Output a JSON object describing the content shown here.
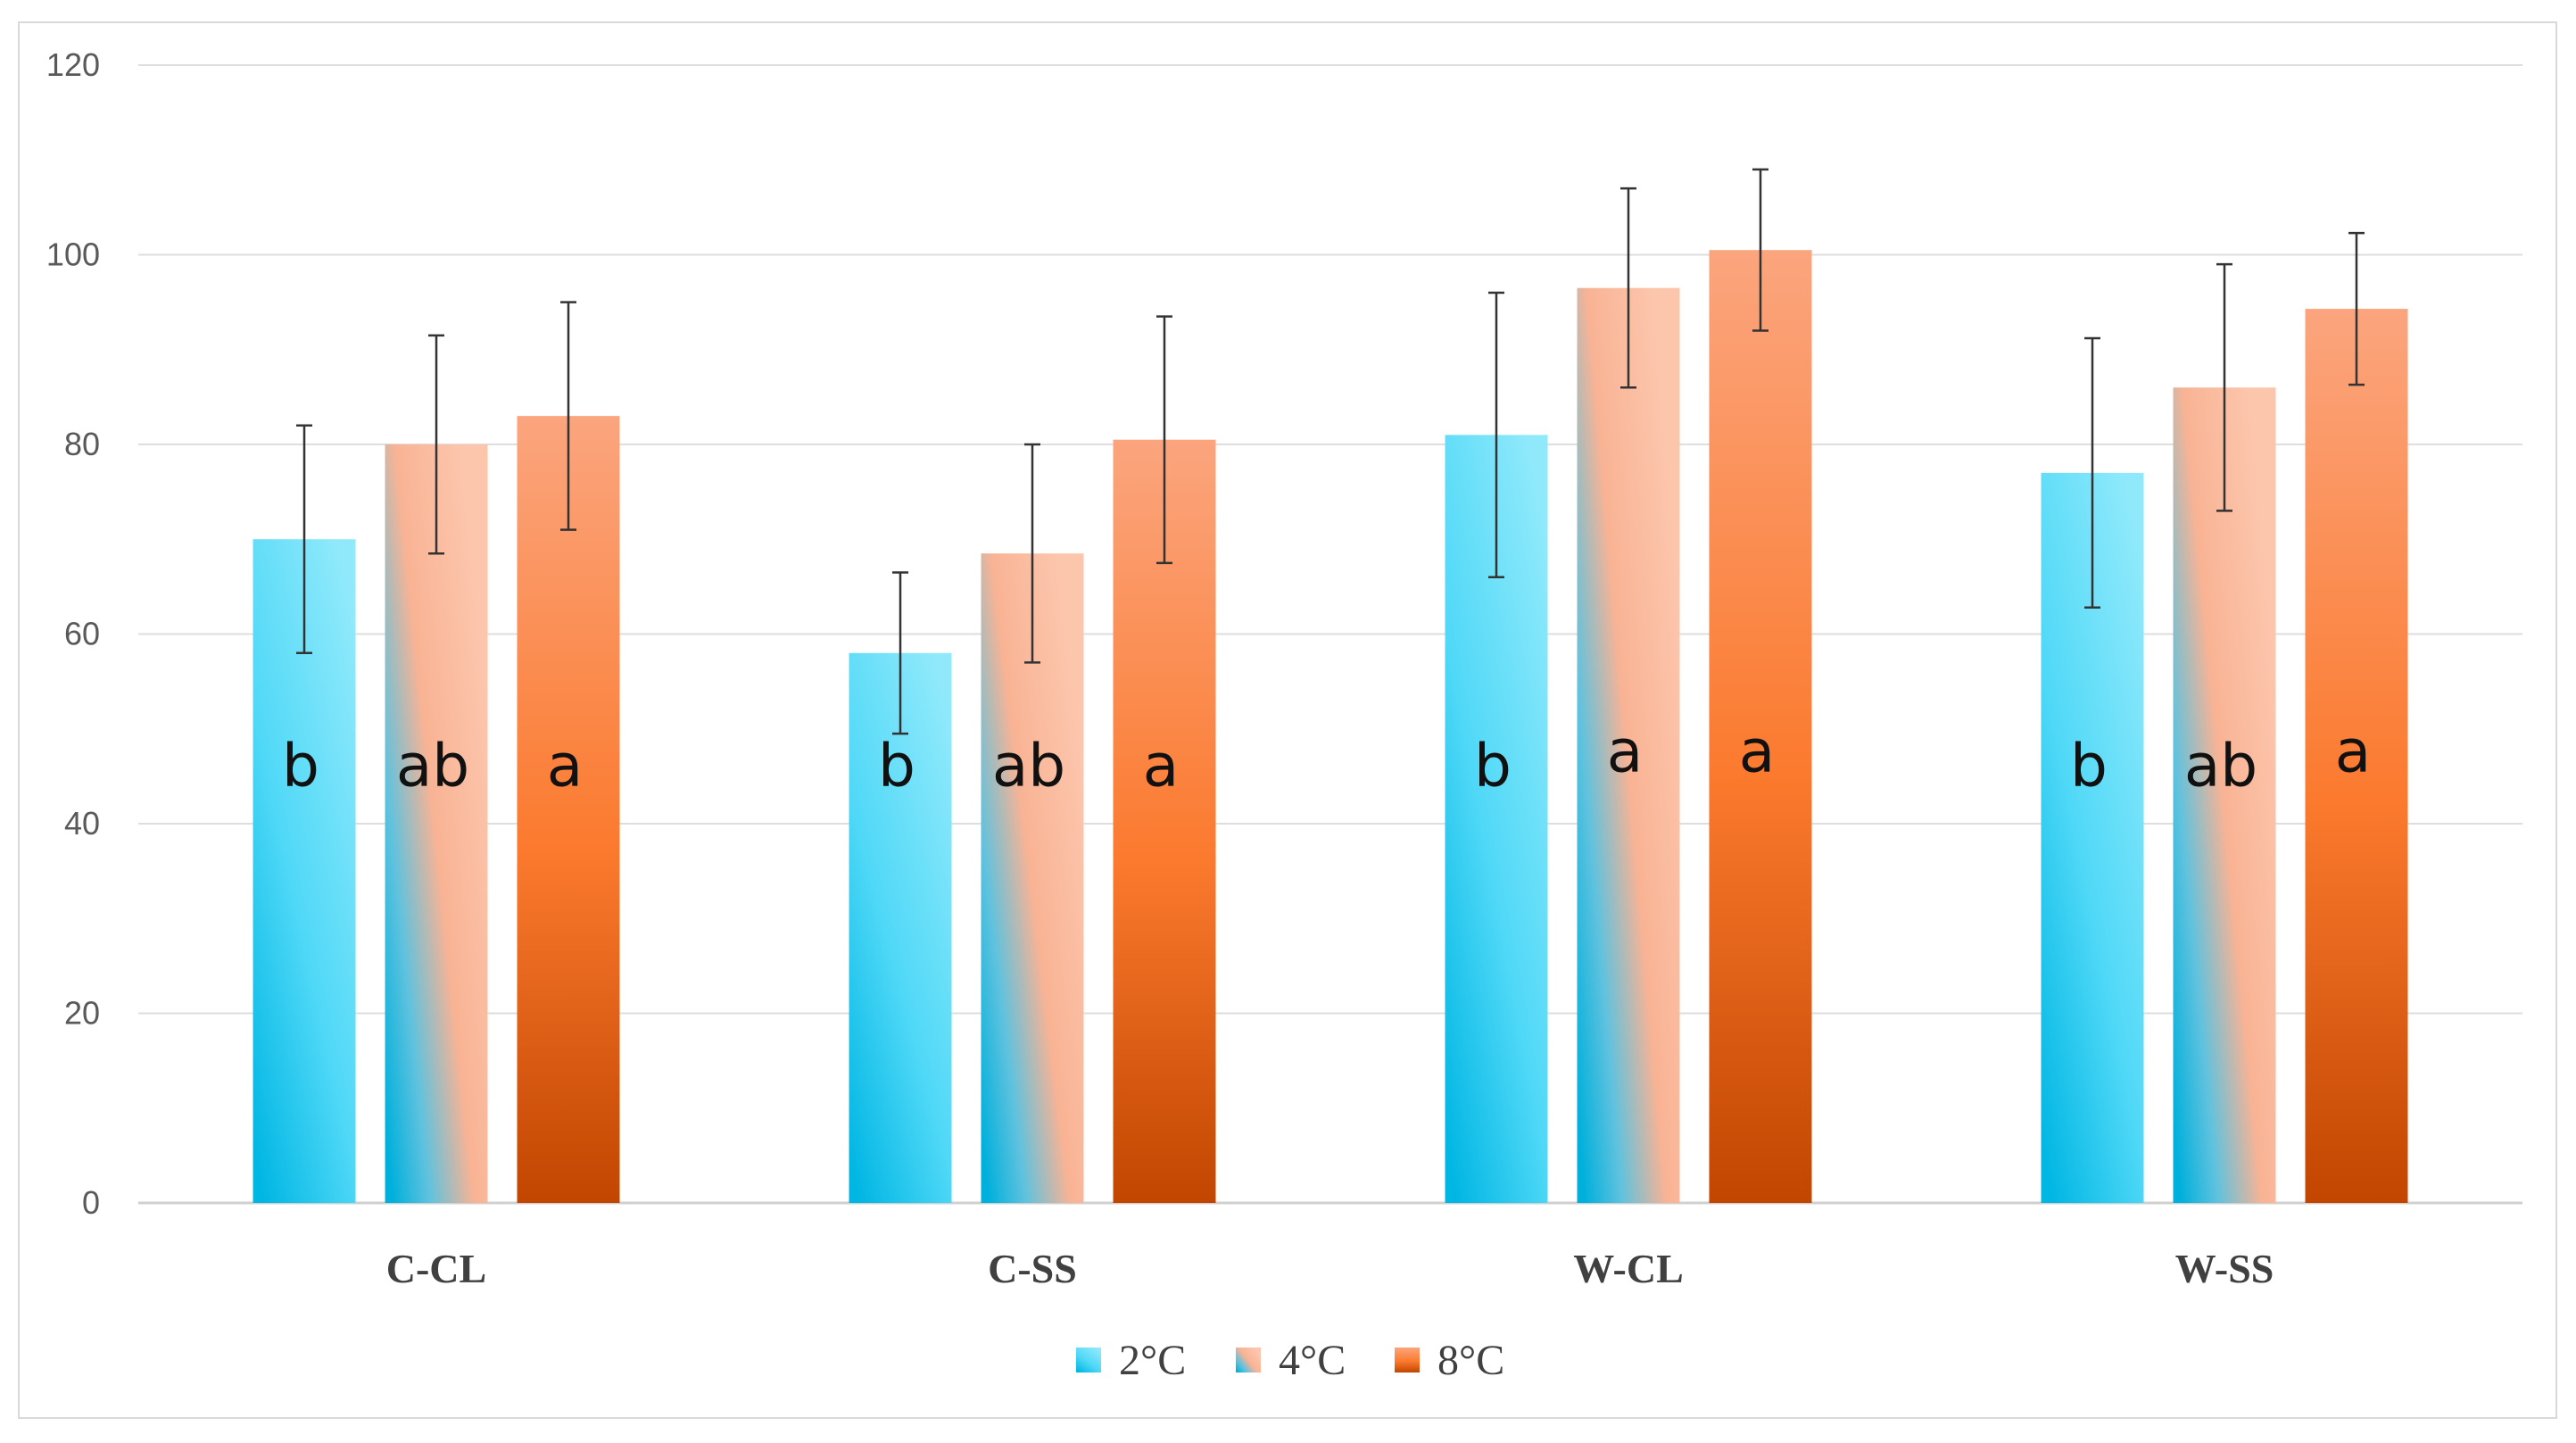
{
  "chart_data": {
    "type": "bar",
    "title": "",
    "xlabel": "",
    "ylabel": "",
    "ylim": [
      0,
      120
    ],
    "yticks": [
      0,
      20,
      40,
      60,
      80,
      100,
      120
    ],
    "ytick_labels": [
      "0",
      "20",
      "40",
      "60",
      "80",
      "100",
      "120"
    ],
    "grid": true,
    "legend_position": "bottom",
    "categories": [
      "C-CL",
      "C-SS",
      "W-CL",
      "W-SS"
    ],
    "series": [
      {
        "name": "2°C",
        "color_top": "#5fdcf8",
        "color_bottom": "#00b8e6",
        "values": [
          70,
          58,
          81,
          77
        ],
        "errors": [
          12,
          8.5,
          15,
          14.2
        ],
        "letters": [
          "b",
          "b",
          "b",
          "b"
        ]
      },
      {
        "name": "4°C",
        "color_top": "#fbbfa3",
        "color_bottom": "#1aa9d6",
        "values": [
          80,
          68.5,
          96.5,
          86
        ],
        "errors": [
          11.5,
          11.5,
          10.5,
          13
        ],
        "letters": [
          "ab",
          "ab",
          "a",
          "ab"
        ]
      },
      {
        "name": "8°C",
        "color_top": "#fa9b70",
        "color_bottom": "#c44800",
        "values": [
          83,
          80.5,
          100.5,
          94.3
        ],
        "errors": [
          12,
          13,
          8.5,
          8
        ],
        "letters": [
          "a",
          "a",
          "a",
          "a"
        ]
      }
    ]
  }
}
